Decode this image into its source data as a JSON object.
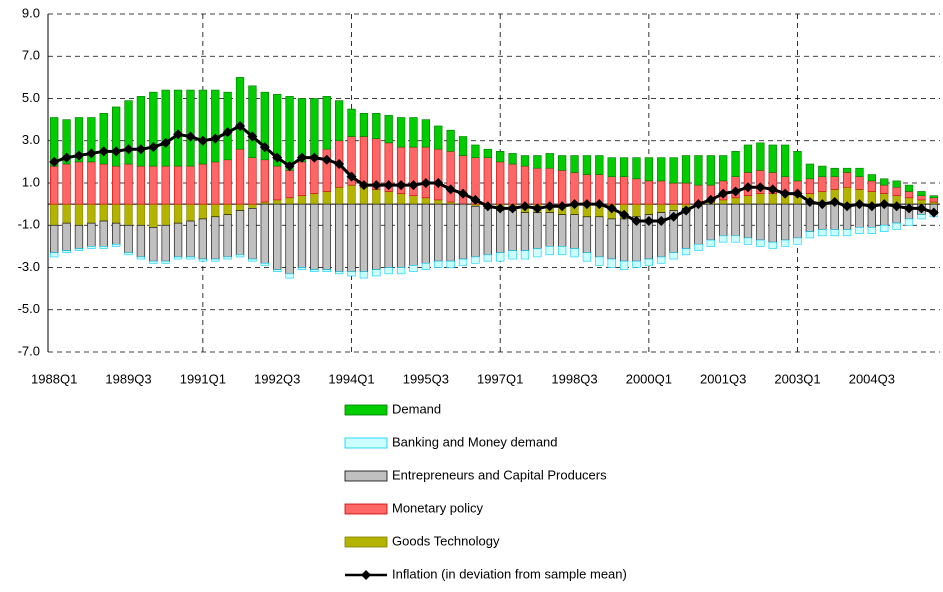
{
  "chart_data": {
    "type": "bar",
    "categories": [
      "1988Q1",
      null,
      null,
      null,
      null,
      null,
      "1989Q3",
      null,
      null,
      null,
      null,
      null,
      "1991Q1",
      null,
      null,
      null,
      null,
      null,
      "1992Q3",
      null,
      null,
      null,
      null,
      null,
      "1994Q1",
      null,
      null,
      null,
      null,
      null,
      "1995Q3",
      null,
      null,
      null,
      null,
      null,
      "1997Q1",
      null,
      null,
      null,
      null,
      null,
      "1998Q3",
      null,
      null,
      null,
      null,
      null,
      "2000Q1",
      null,
      null,
      null,
      null,
      null,
      "2001Q3",
      null,
      null,
      null,
      null,
      null,
      "2003Q1",
      null,
      null,
      null,
      null,
      null,
      "2004Q3",
      null,
      null,
      null,
      null,
      null
    ],
    "ylim": [
      -7,
      9
    ],
    "yticks": [
      {
        "value": -7,
        "label": "-7.0"
      },
      {
        "value": -5,
        "label": "-5.0"
      },
      {
        "value": -3,
        "label": "-3.0"
      },
      {
        "value": -1,
        "label": "-1.0"
      },
      {
        "value": 1,
        "label": "1.0"
      },
      {
        "value": 3,
        "label": "3.0"
      },
      {
        "value": 5,
        "label": "5.0"
      },
      {
        "value": 7,
        "label": "7.0"
      },
      {
        "value": 9,
        "label": "9.0"
      }
    ],
    "grid": true,
    "series": [
      {
        "name": "Demand",
        "color": "#00cc00",
        "values": [
          2.3,
          2.1,
          2.1,
          2.1,
          2.4,
          2.8,
          3.0,
          3.3,
          3.5,
          3.6,
          3.6,
          3.6,
          3.5,
          3.4,
          3.2,
          3.4,
          3.4,
          3.2,
          3.4,
          3.5,
          3.0,
          2.7,
          2.5,
          1.9,
          1.3,
          1.1,
          1.2,
          1.3,
          1.4,
          1.4,
          1.3,
          1.1,
          1.0,
          0.9,
          0.6,
          0.4,
          0.5,
          0.5,
          0.5,
          0.6,
          0.7,
          0.7,
          0.8,
          0.9,
          0.9,
          0.9,
          0.9,
          1.0,
          1.1,
          1.1,
          1.2,
          1.3,
          1.4,
          1.4,
          1.2,
          1.2,
          1.3,
          1.3,
          1.3,
          1.5,
          1.4,
          0.7,
          0.5,
          0.4,
          0.2,
          0.4,
          0.3,
          0.3,
          0.3,
          0.3,
          0.2,
          0.1
        ]
      },
      {
        "name": "Banking and Money demand",
        "color": "#ccffff",
        "values": [
          -0.2,
          -0.1,
          -0.1,
          -0.1,
          -0.1,
          -0.1,
          -0.1,
          -0.1,
          -0.1,
          -0.1,
          -0.1,
          -0.1,
          -0.1,
          -0.1,
          -0.1,
          -0.1,
          -0.1,
          -0.1,
          -0.1,
          -0.2,
          -0.1,
          -0.1,
          -0.1,
          -0.1,
          -0.2,
          -0.3,
          -0.3,
          -0.3,
          -0.3,
          -0.3,
          -0.3,
          -0.3,
          -0.3,
          -0.3,
          -0.3,
          -0.3,
          -0.4,
          -0.4,
          -0.4,
          -0.4,
          -0.4,
          -0.4,
          -0.4,
          -0.4,
          -0.4,
          -0.4,
          -0.4,
          -0.3,
          -0.3,
          -0.3,
          -0.3,
          -0.3,
          -0.3,
          -0.3,
          -0.3,
          -0.3,
          -0.3,
          -0.3,
          -0.3,
          -0.3,
          -0.3,
          -0.3,
          -0.3,
          -0.3,
          -0.3,
          -0.3,
          -0.3,
          -0.3,
          -0.3,
          -0.3,
          -0.2,
          -0.2
        ]
      },
      {
        "name": "Entrepreneurs and Capital Producers",
        "color": "#c0c0c0",
        "values": [
          -1.3,
          -1.3,
          -1.1,
          -1.1,
          -1.2,
          -1.0,
          -1.3,
          -1.5,
          -1.6,
          -1.7,
          -1.6,
          -1.7,
          -1.9,
          -2.0,
          -2.0,
          -2.1,
          -2.4,
          -2.8,
          -3.1,
          -3.3,
          -3.0,
          -3.1,
          -3.1,
          -3.2,
          -3.2,
          -3.2,
          -3.1,
          -3.0,
          -3.0,
          -2.9,
          -2.8,
          -2.7,
          -2.7,
          -2.6,
          -2.4,
          -2.2,
          -2.0,
          -1.9,
          -1.8,
          -1.7,
          -1.6,
          -1.5,
          -1.6,
          -1.7,
          -1.9,
          -1.9,
          -2.0,
          -2.1,
          -2.1,
          -2.1,
          -2.0,
          -1.9,
          -1.8,
          -1.7,
          -1.5,
          -1.5,
          -1.6,
          -1.7,
          -1.8,
          -1.7,
          -1.6,
          -1.3,
          -1.2,
          -1.2,
          -1.2,
          -1.1,
          -1.1,
          -1.0,
          -0.9,
          -0.7,
          -0.5,
          -0.4
        ]
      },
      {
        "name": "Monetary policy",
        "color": "#ff6666",
        "values": [
          1.8,
          1.9,
          2.0,
          2.0,
          1.9,
          1.8,
          1.9,
          1.8,
          1.8,
          1.8,
          1.8,
          1.8,
          1.9,
          2.0,
          2.1,
          2.6,
          2.2,
          2.0,
          1.6,
          1.3,
          1.6,
          1.8,
          2.0,
          2.2,
          2.3,
          2.4,
          2.4,
          2.3,
          2.2,
          2.3,
          2.4,
          2.4,
          2.4,
          2.3,
          2.2,
          2.2,
          2.0,
          1.9,
          1.8,
          1.7,
          1.7,
          1.6,
          1.5,
          1.4,
          1.4,
          1.3,
          1.3,
          1.2,
          1.1,
          1.1,
          1.0,
          1.0,
          0.9,
          0.8,
          0.9,
          1.0,
          1.1,
          1.1,
          1.0,
          0.8,
          0.7,
          0.7,
          0.7,
          0.6,
          0.7,
          0.6,
          0.5,
          0.4,
          0.4,
          0.3,
          0.2,
          0.2
        ]
      },
      {
        "name": "Goods Technology",
        "color": "#b3b300",
        "values": [
          -1.0,
          -0.9,
          -1.0,
          -0.9,
          -0.8,
          -0.9,
          -1.0,
          -1.0,
          -1.1,
          -1.0,
          -0.9,
          -0.8,
          -0.7,
          -0.6,
          -0.5,
          -0.3,
          -0.2,
          0.1,
          0.2,
          0.3,
          0.4,
          0.5,
          0.6,
          0.8,
          0.9,
          0.8,
          0.7,
          0.6,
          0.5,
          0.4,
          0.3,
          0.2,
          0.1,
          0.0,
          -0.1,
          -0.2,
          -0.3,
          -0.3,
          -0.4,
          -0.4,
          -0.4,
          -0.5,
          -0.5,
          -0.6,
          -0.6,
          -0.7,
          -0.7,
          -0.6,
          -0.5,
          -0.4,
          -0.3,
          -0.2,
          -0.1,
          0.1,
          0.2,
          0.3,
          0.4,
          0.5,
          0.5,
          0.5,
          0.4,
          0.5,
          0.6,
          0.7,
          0.8,
          0.7,
          0.6,
          0.5,
          0.4,
          0.3,
          0.2,
          0.1
        ]
      },
      {
        "name": "Inflation (in deviation from sample mean)",
        "type": "line",
        "color": "#000000",
        "values": [
          2.0,
          2.2,
          2.3,
          2.4,
          2.5,
          2.5,
          2.6,
          2.6,
          2.7,
          2.9,
          3.3,
          3.2,
          3.0,
          3.1,
          3.4,
          3.7,
          3.2,
          2.7,
          2.2,
          1.8,
          2.2,
          2.2,
          2.1,
          1.9,
          1.3,
          0.9,
          0.9,
          0.9,
          0.9,
          0.9,
          1.0,
          1.0,
          0.7,
          0.5,
          0.2,
          -0.1,
          -0.2,
          -0.2,
          -0.1,
          -0.2,
          -0.1,
          -0.1,
          0.0,
          0.0,
          0.0,
          -0.2,
          -0.5,
          -0.8,
          -0.8,
          -0.8,
          -0.6,
          -0.3,
          0.0,
          0.2,
          0.5,
          0.6,
          0.8,
          0.8,
          0.7,
          0.5,
          0.5,
          0.1,
          0.0,
          0.1,
          -0.1,
          0.0,
          -0.1,
          0.0,
          -0.1,
          -0.2,
          -0.2,
          -0.4
        ]
      }
    ]
  }
}
